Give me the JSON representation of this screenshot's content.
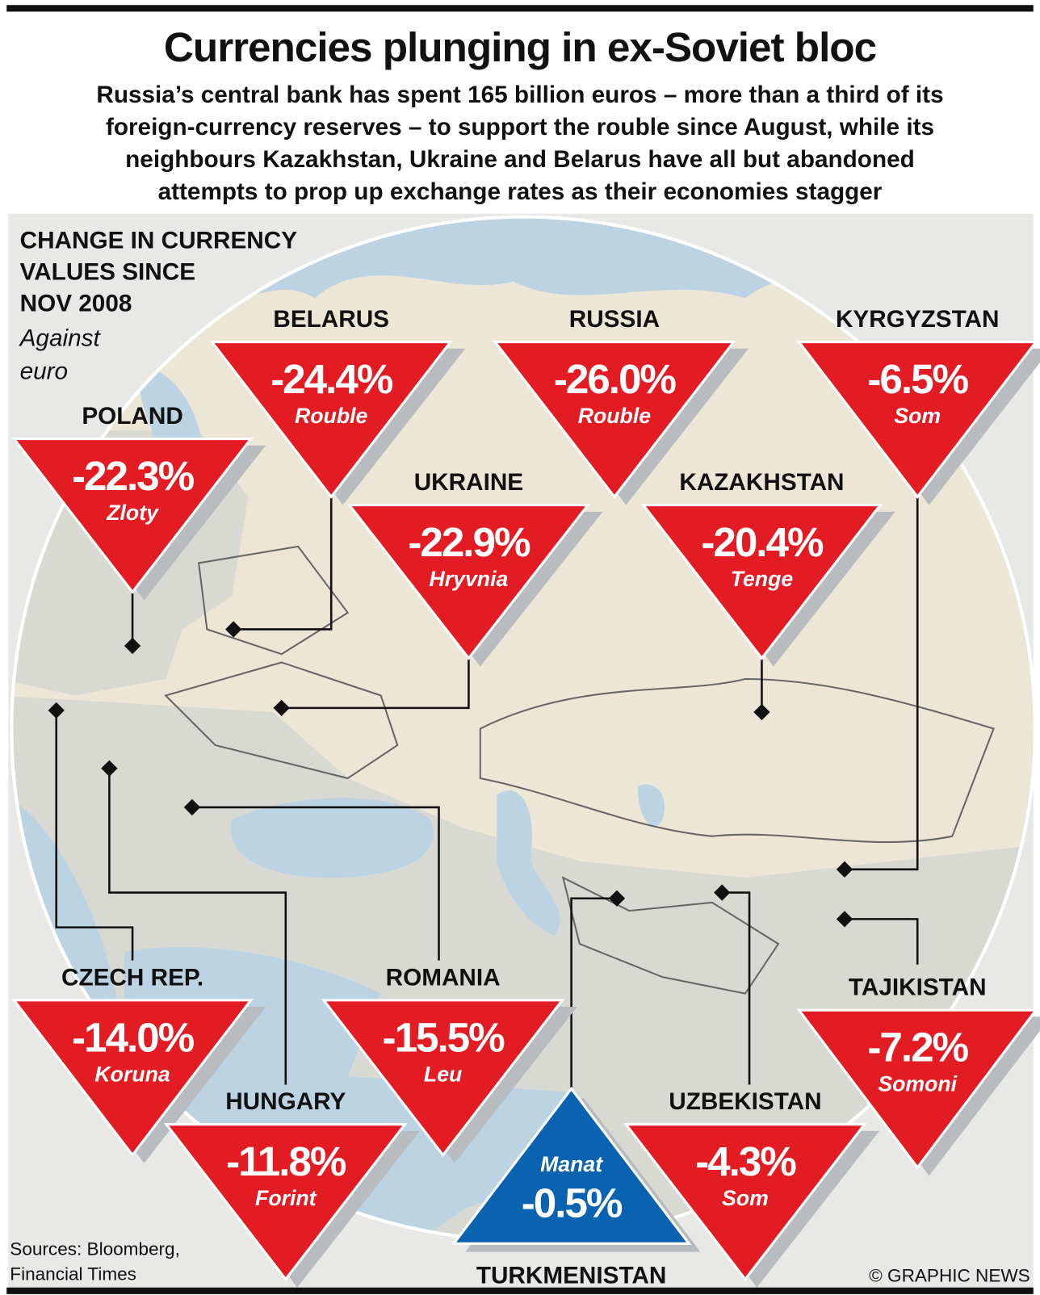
{
  "title": "Currencies plunging in ex-Soviet bloc",
  "subtitle_lines": [
    "Russia’s central bank has spent 165 billion euros – more than a third of its",
    "foreign-currency reserves – to support the rouble since August, while its",
    "neighbours Kazakhstan, Ukraine and Belarus have all but abandoned",
    "attempts to prop up exchange rates as their economies stagger"
  ],
  "legend": {
    "lines": [
      "CHANGE IN CURRENCY",
      "VALUES SINCE",
      "NOV 2008"
    ],
    "note_lines": [
      "Against",
      "euro"
    ]
  },
  "colors": {
    "decline": "#e31b23",
    "rise": "#0a63b0",
    "land": "#ece6d6",
    "sea": "#bcd3e3",
    "other_land": "#d9d9d3"
  },
  "countries": [
    {
      "name": "BELARUS",
      "change": "-24.4%",
      "currency": "Rouble"
    },
    {
      "name": "RUSSIA",
      "change": "-26.0%",
      "currency": "Rouble"
    },
    {
      "name": "KYRGYZSTAN",
      "change": "-6.5%",
      "currency": "Som"
    },
    {
      "name": "POLAND",
      "change": "-22.3%",
      "currency": "Zloty"
    },
    {
      "name": "UKRAINE",
      "change": "-22.9%",
      "currency": "Hryvnia"
    },
    {
      "name": "KAZAKHSTAN",
      "change": "-20.4%",
      "currency": "Tenge"
    },
    {
      "name": "CZECH REP.",
      "change": "-14.0%",
      "currency": "Koruna"
    },
    {
      "name": "ROMANIA",
      "change": "-15.5%",
      "currency": "Leu"
    },
    {
      "name": "TAJIKISTAN",
      "change": "-7.2%",
      "currency": "Somoni"
    },
    {
      "name": "HUNGARY",
      "change": "-11.8%",
      "currency": "Forint"
    },
    {
      "name": "UZBEKISTAN",
      "change": "-4.3%",
      "currency": "Som"
    },
    {
      "name": "TURKMENISTAN",
      "change": "-0.5%",
      "currency": "Manat"
    }
  ],
  "sources_lines": [
    "Sources: Bloomberg,",
    "Financial Times"
  ],
  "credit": "© GRAPHIC NEWS"
}
